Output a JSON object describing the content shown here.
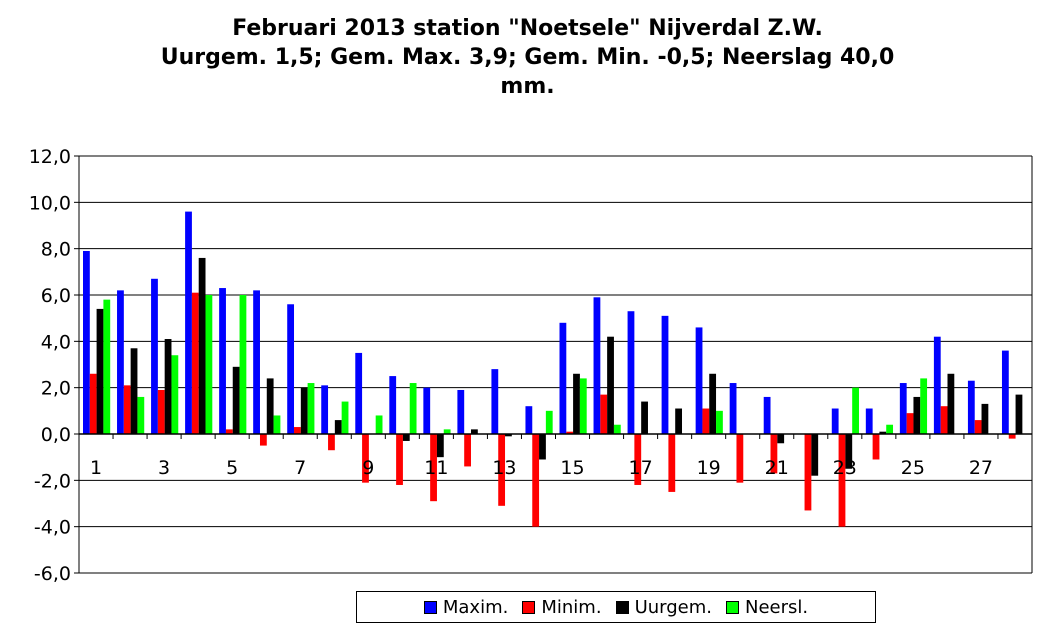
{
  "chart_data": {
    "type": "bar",
    "title_lines": [
      "Februari 2013 station \"Noetsele\" Nijverdal Z.W.",
      "Uurgem. 1,5;  Gem. Max. 3,9; Gem. Min. -0,5;  Neerslag 40,0",
      "mm."
    ],
    "categories": [
      1,
      2,
      3,
      4,
      5,
      6,
      7,
      8,
      9,
      10,
      11,
      12,
      13,
      14,
      15,
      16,
      17,
      18,
      19,
      20,
      21,
      22,
      23,
      24,
      25,
      26,
      27,
      28
    ],
    "x_tick_labels": [
      "1",
      "3",
      "5",
      "7",
      "9",
      "11",
      "13",
      "15",
      "17",
      "19",
      "21",
      "23",
      "25",
      "27"
    ],
    "y_tick_labels": [
      "12,0",
      "10,0",
      "8,0",
      "6,0",
      "4,0",
      "2,0",
      "0,0",
      "-2,0",
      "-4,0",
      "-6,0"
    ],
    "ylim": [
      -6,
      12
    ],
    "grid": true,
    "legend_position": "bottom",
    "series": [
      {
        "name": "Maxim.",
        "color": "#0000ff",
        "values": [
          7.9,
          6.2,
          6.7,
          9.6,
          6.3,
          6.2,
          5.6,
          2.1,
          3.5,
          2.5,
          2.0,
          1.9,
          2.8,
          1.2,
          4.8,
          5.9,
          5.3,
          5.1,
          4.6,
          2.2,
          1.6,
          0.0,
          1.1,
          1.1,
          2.2,
          4.2,
          2.3,
          3.6
        ]
      },
      {
        "name": "Minim.",
        "color": "#ff0000",
        "values": [
          2.6,
          2.1,
          1.9,
          6.1,
          0.2,
          -0.5,
          0.3,
          -0.7,
          -2.1,
          -2.2,
          -2.9,
          -1.4,
          -3.1,
          -4.0,
          0.1,
          1.7,
          -2.2,
          -2.5,
          1.1,
          -2.1,
          -1.7,
          -3.3,
          -4.0,
          -1.1,
          0.9,
          1.2,
          0.6,
          -0.2
        ]
      },
      {
        "name": "Uurgem.",
        "color": "#000000",
        "values": [
          5.4,
          3.7,
          4.1,
          7.6,
          2.9,
          2.4,
          2.0,
          0.6,
          0.0,
          -0.3,
          -1.0,
          0.2,
          -0.1,
          -1.1,
          2.6,
          4.2,
          1.4,
          1.1,
          2.6,
          0.0,
          -0.4,
          -1.8,
          -1.5,
          0.1,
          1.6,
          2.6,
          1.3,
          1.7
        ]
      },
      {
        "name": "Neersl.",
        "color": "#00ff00",
        "values": [
          5.8,
          1.6,
          3.4,
          6.0,
          6.0,
          0.8,
          2.2,
          1.4,
          0.8,
          2.2,
          0.2,
          0.0,
          0.0,
          1.0,
          2.4,
          0.4,
          0.0,
          0.0,
          1.0,
          0.0,
          0.0,
          0.0,
          2.0,
          0.4,
          2.4,
          0.0,
          0.0,
          0.0
        ]
      }
    ]
  }
}
